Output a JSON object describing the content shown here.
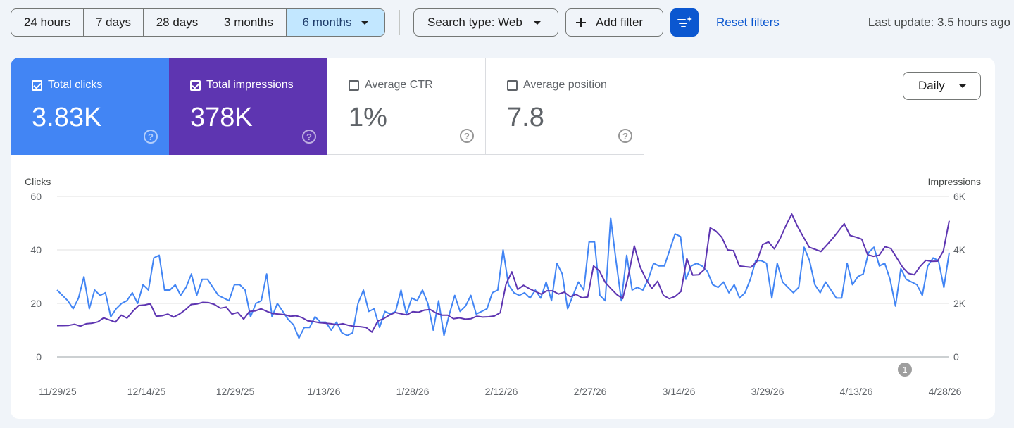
{
  "date_ranges": [
    {
      "label": "24 hours"
    },
    {
      "label": "7 days"
    },
    {
      "label": "28 days"
    },
    {
      "label": "3 months"
    },
    {
      "label": "6 months",
      "active": true
    }
  ],
  "search_type": "Search type: Web",
  "add_filter": "Add filter",
  "reset_filters": "Reset filters",
  "last_update": "Last update: 3.5 hours ago",
  "metrics": [
    {
      "label": "Total clicks",
      "value": "3.83K",
      "checked": true,
      "color": "#4285f4"
    },
    {
      "label": "Total impressions",
      "value": "378K",
      "checked": true,
      "color": "#5e35b1"
    },
    {
      "label": "Average CTR",
      "value": "1%",
      "checked": false
    },
    {
      "label": "Average position",
      "value": "7.8",
      "checked": false
    }
  ],
  "help_glyph": "?",
  "granularity": "Daily",
  "annotation_badge": "1",
  "colors": {
    "clicks": "#4285f4",
    "impressions": "#5e35b1",
    "accent": "#0b57d0",
    "selected_range": "#c2e7ff"
  },
  "icons": {
    "add": "plus-icon",
    "filter": "filter-sparkle-icon",
    "dropdown": "caret-down-icon",
    "help": "help-circle-icon"
  },
  "chart_data": {
    "type": "line",
    "left_axis_title": "Clicks",
    "right_axis_title": "Impressions",
    "left_ticks": [
      "0",
      "20",
      "40",
      "60"
    ],
    "right_ticks": [
      "0",
      "2K",
      "4K",
      "6K"
    ],
    "left_ylim": [
      0,
      60
    ],
    "right_ylim": [
      0,
      6000
    ],
    "x_labels": [
      "11/29/25",
      "12/14/25",
      "12/29/25",
      "1/13/26",
      "1/28/26",
      "2/12/26",
      "2/27/26",
      "3/14/26",
      "3/29/26",
      "4/13/26",
      "4/28/26"
    ],
    "x_start": "11/29/25",
    "x_end": "4/28/26",
    "grid": true,
    "series": [
      {
        "name": "Clicks",
        "axis": "left",
        "values": [
          25,
          23,
          21,
          18,
          22,
          30,
          18,
          25,
          23,
          24,
          15,
          18,
          20,
          21,
          24,
          20,
          27,
          25,
          37,
          38,
          25,
          25,
          27,
          23,
          26,
          31,
          23,
          29,
          29,
          26,
          23,
          22,
          21,
          27,
          27,
          25,
          15,
          20,
          21,
          31,
          15,
          20,
          17,
          14,
          12,
          7,
          11,
          11,
          15,
          13,
          13,
          10,
          13,
          9,
          8,
          9,
          20,
          25,
          17,
          18,
          11,
          17,
          16,
          17,
          25,
          16,
          22,
          21,
          25,
          20,
          10,
          21,
          8,
          16,
          23,
          17,
          19,
          23,
          16,
          17,
          18,
          24,
          25,
          40,
          27,
          24,
          23,
          24,
          22,
          25,
          22,
          28,
          21,
          35,
          31,
          18,
          23,
          28,
          25,
          43,
          43,
          23,
          21,
          52,
          36,
          21,
          38,
          25,
          26,
          25,
          29,
          35,
          34,
          34,
          40,
          46,
          45,
          29,
          34,
          35,
          34,
          32,
          27,
          26,
          28,
          24,
          27,
          22,
          24,
          29,
          36,
          36,
          35,
          22,
          35,
          28,
          26,
          24,
          26,
          41,
          36,
          27,
          24,
          28,
          25,
          22,
          22,
          35,
          27,
          30,
          31,
          39,
          41,
          34,
          35,
          29,
          19,
          33,
          29,
          28,
          27,
          23,
          34,
          37,
          36,
          26,
          39
        ]
      },
      {
        "name": "Impressions",
        "axis": "right",
        "values": [
          1170,
          1170,
          1180,
          1220,
          1150,
          1240,
          1260,
          1310,
          1460,
          1380,
          1300,
          1560,
          1450,
          1710,
          1920,
          1940,
          1990,
          1520,
          1540,
          1600,
          1490,
          1600,
          1760,
          1960,
          1980,
          2040,
          2030,
          1960,
          1820,
          1860,
          1600,
          1660,
          1410,
          1700,
          1720,
          1800,
          1700,
          1620,
          1600,
          1580,
          1520,
          1540,
          1470,
          1350,
          1320,
          1280,
          1260,
          1240,
          1200,
          1240,
          1180,
          1140,
          1130,
          1100,
          930,
          1340,
          1430,
          1560,
          1660,
          1610,
          1570,
          1690,
          1670,
          1750,
          1770,
          1640,
          1560,
          1560,
          1430,
          1460,
          1410,
          1430,
          1520,
          1490,
          1500,
          1530,
          1650,
          2720,
          3180,
          2520,
          2680,
          2550,
          2450,
          2350,
          2470,
          2470,
          2350,
          2420,
          2250,
          2340,
          2210,
          2240,
          3400,
          3220,
          2790,
          2550,
          2330,
          2180,
          3050,
          4150,
          3360,
          2910,
          2560,
          2830,
          2300,
          2180,
          2260,
          2450,
          3680,
          3060,
          3070,
          3260,
          4820,
          4700,
          4470,
          4000,
          3970,
          3400,
          3370,
          3350,
          3560,
          4200,
          4300,
          4040,
          4420,
          4910,
          5340,
          4870,
          4480,
          4100,
          4020,
          3940,
          4180,
          4430,
          4700,
          4980,
          4540,
          4480,
          4400,
          3820,
          3760,
          3800,
          4120,
          4050,
          3700,
          3350,
          3120,
          3070,
          3380,
          3610,
          3570,
          3580,
          3960,
          5090
        ]
      }
    ]
  }
}
